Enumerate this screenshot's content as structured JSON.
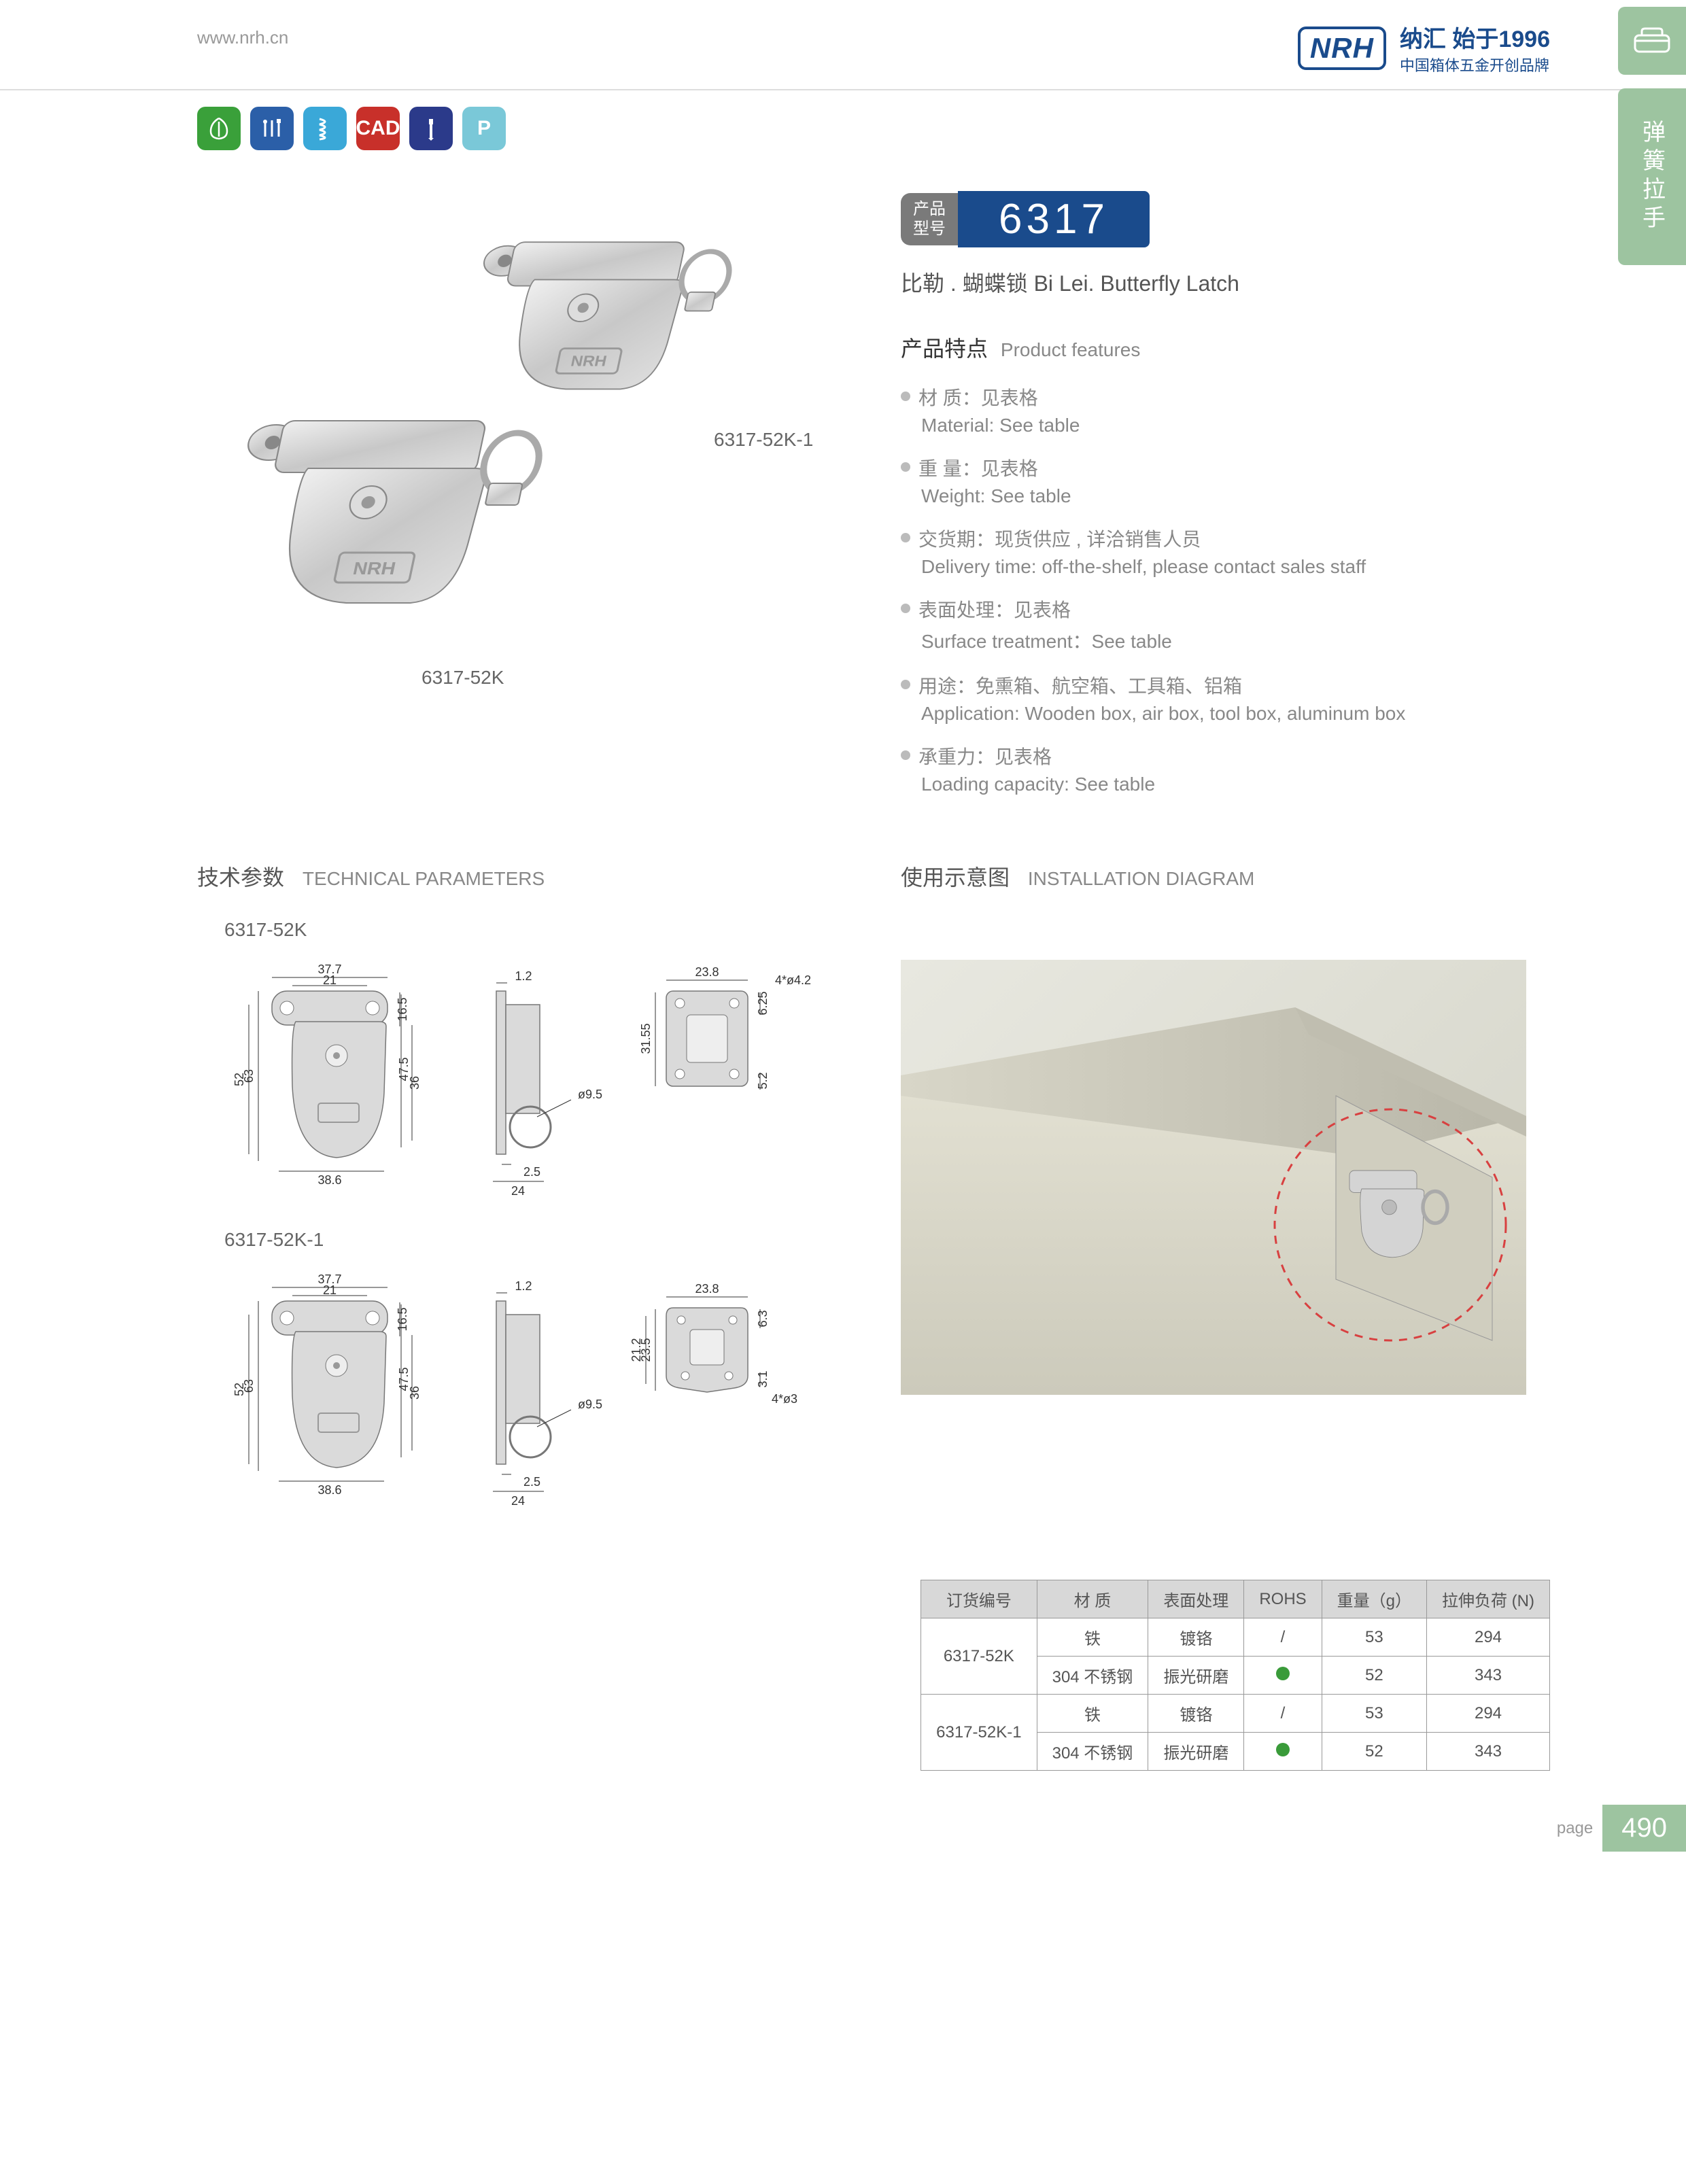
{
  "header": {
    "url": "www.nrh.cn",
    "brand_logo": "NRH",
    "brand_title": "纳汇 始于1996",
    "brand_sub": "中国箱体五金开创品牌"
  },
  "side_tab": "弹簧拉手",
  "icons": [
    {
      "bg": "#3aa03a",
      "type": "leaf"
    },
    {
      "bg": "#2b5fa8",
      "type": "tools"
    },
    {
      "bg": "#3aa8d8",
      "type": "spring"
    },
    {
      "bg": "#c8302a",
      "type": "cad",
      "text": "CAD"
    },
    {
      "bg": "#2b3a8a",
      "type": "screw"
    },
    {
      "bg": "#7ac8d8",
      "type": "p",
      "text": "P"
    }
  ],
  "product": {
    "label1": "6317-52K-1",
    "label2": "6317-52K",
    "model_label": "产品\n型号",
    "model_num": "6317",
    "subtitle": "比勒 . 蝴蝶锁   Bi Lei. Butterfly Latch",
    "features_title_cn": "产品特点",
    "features_title_en": "Product features",
    "features": [
      {
        "cn": "材 质：见表格",
        "en": "Material: See table"
      },
      {
        "cn": "重 量：见表格",
        "en": "Weight: See table"
      },
      {
        "cn": "交货期：现货供应 , 详洽销售人员",
        "en": "Delivery time: off-the-shelf, please contact sales staff"
      },
      {
        "cn": "表面处理：见表格",
        "en": "Surface treatment：See table"
      },
      {
        "cn": "用途：免熏箱、航空箱、工具箱、铝箱",
        "en": "Application: Wooden box, air box, tool box, aluminum box"
      },
      {
        "cn": "承重力：见表格",
        "en": "Loading capacity: See table"
      }
    ]
  },
  "tech": {
    "title_cn": "技术参数",
    "title_en": "TECHNICAL PARAMETERS",
    "install_cn": "使用示意图",
    "install_en": "INSTALLATION DIAGRAM",
    "drawings": [
      {
        "label": "6317-52K",
        "dims": {
          "w_top": "37.7",
          "w_mid": "21",
          "h": "63",
          "h2": "52",
          "h3": "47.5",
          "h4": "36",
          "w_bot": "38.6",
          "h_top": "16.5",
          "side_t": "1.2",
          "side_d": "ø9.5",
          "side_b": "2.5",
          "side_w": "24",
          "r_w": "23.8",
          "r_h": "31.55",
          "r_h2": "6.25",
          "r_b": "5.2",
          "r_note": "4*ø4.2"
        }
      },
      {
        "label": "6317-52K-1",
        "dims": {
          "w_top": "37.7",
          "w_mid": "21",
          "h": "63",
          "h2": "52",
          "h3": "47.5",
          "h4": "36",
          "w_bot": "38.6",
          "h_top": "16.5",
          "side_t": "1.2",
          "side_d": "ø9.5",
          "side_b": "2.5",
          "side_w": "24",
          "r_w": "23.8",
          "r_h": "23.5",
          "r_h2": "21.2",
          "r_h3": "6.3",
          "r_h4": "3.1",
          "r_note": "4*ø3"
        }
      }
    ]
  },
  "table": {
    "headers": [
      "订货编号",
      "材   质",
      "表面处理",
      "ROHS",
      "重量（g）",
      "拉伸负荷 (N)"
    ],
    "rows": [
      {
        "code": "6317-52K",
        "sub": [
          [
            "铁",
            "镀铬",
            "/",
            "53",
            "294"
          ],
          [
            "304 不锈钢",
            "振光研磨",
            "dot",
            "52",
            "343"
          ]
        ]
      },
      {
        "code": "6317-52K-1",
        "sub": [
          [
            "铁",
            "镀铬",
            "/",
            "53",
            "294"
          ],
          [
            "304 不锈钢",
            "振光研磨",
            "dot",
            "52",
            "343"
          ]
        ]
      }
    ]
  },
  "page": {
    "label": "page",
    "num": "490"
  },
  "colors": {
    "brand": "#1a4b8c",
    "green_tab": "#9dc4a0",
    "gray_text": "#888",
    "table_head": "#d8d8d8",
    "drawing_line": "#888",
    "drawing_fill": "#d8d8d8",
    "dim_line": "#555"
  }
}
